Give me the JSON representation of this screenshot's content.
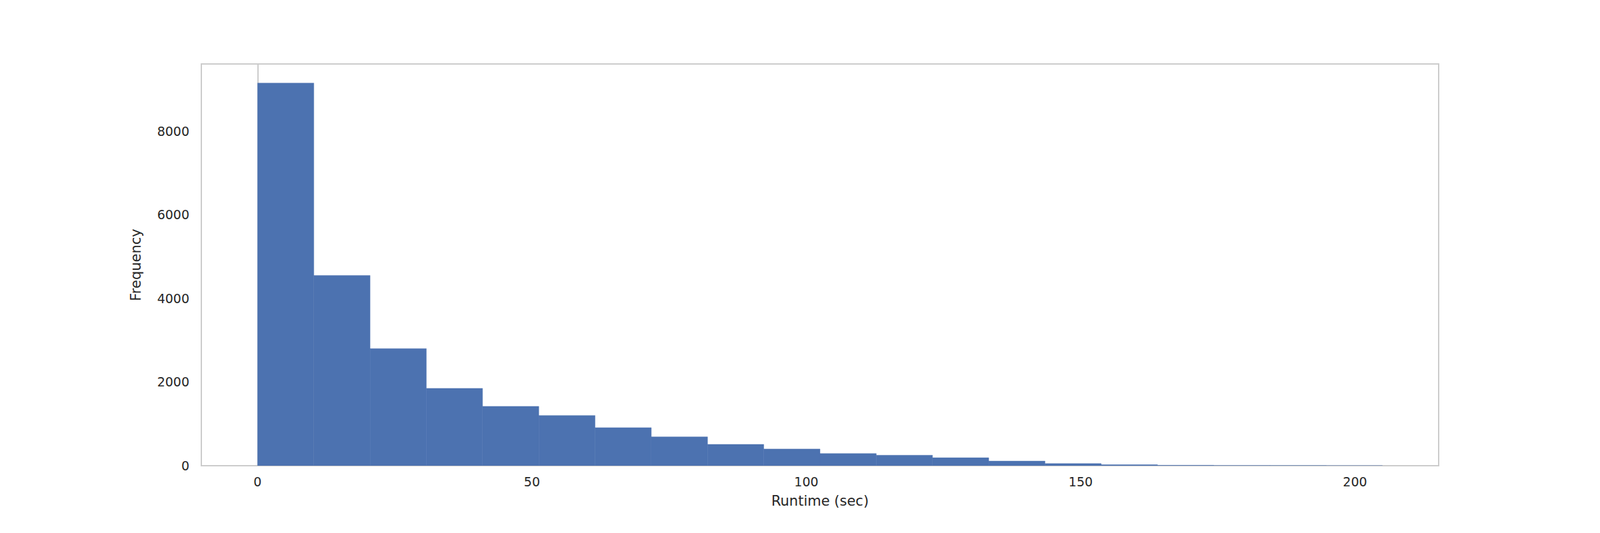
{
  "chart_data": {
    "type": "histogram",
    "xlabel": "Runtime (sec)",
    "ylabel": "Frequency",
    "bins": [
      0,
      10.25,
      20.5,
      30.75,
      41,
      51.25,
      61.5,
      71.75,
      82,
      92.25,
      102.5,
      112.75,
      123,
      133.25,
      143.5,
      153.75,
      164,
      174.25,
      184.5,
      194.75,
      205
    ],
    "values": [
      9150,
      4550,
      2800,
      1850,
      1420,
      1200,
      910,
      690,
      510,
      400,
      290,
      250,
      190,
      110,
      50,
      25,
      10,
      5,
      3,
      1
    ],
    "color": "#4c72b0",
    "xlim": [
      -10.25,
      215.25
    ],
    "xticks": [
      0,
      50,
      100,
      150,
      200
    ],
    "ylim": [
      0,
      9607.5
    ],
    "yticks": [
      0,
      2000,
      4000,
      6000,
      8000
    ],
    "grid": false
  }
}
